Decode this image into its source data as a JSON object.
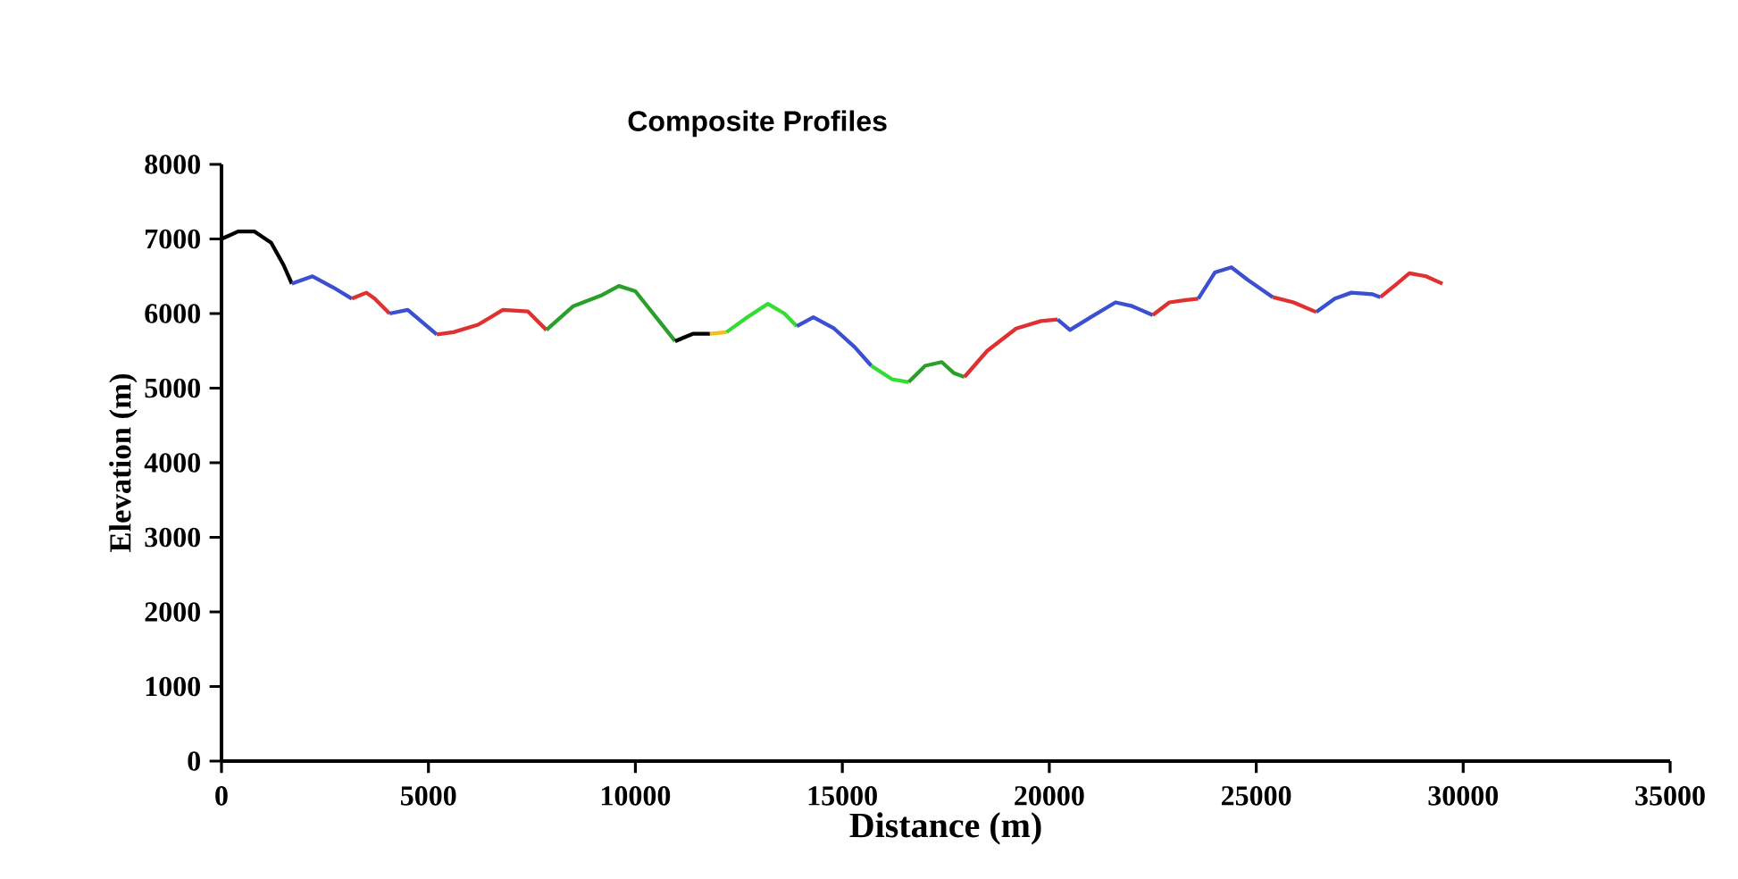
{
  "chart_data": {
    "type": "line",
    "title": "Composite Profiles",
    "xlabel": "Distance (m)",
    "ylabel": "Elevation (m)",
    "xlim": [
      0,
      35000
    ],
    "xticks": [
      0,
      5000,
      10000,
      15000,
      20000,
      25000,
      30000,
      35000
    ],
    "ylim": [
      0,
      8000
    ],
    "yticks": [
      0,
      1000,
      2000,
      3000,
      4000,
      5000,
      6000,
      7000,
      8000
    ],
    "series": [
      {
        "color": "#000000",
        "x": [
          0,
          400,
          800,
          1200,
          1500,
          1700
        ],
        "values": [
          7000,
          7100,
          7100,
          6950,
          6650,
          6400
        ]
      },
      {
        "color": "#3b4fd0",
        "x": [
          1700,
          2200,
          2700,
          3150
        ],
        "values": [
          6400,
          6500,
          6350,
          6200
        ]
      },
      {
        "color": "#e03030",
        "x": [
          3150,
          3500,
          3700,
          4060
        ],
        "values": [
          6200,
          6280,
          6200,
          6000
        ]
      },
      {
        "color": "#3b4fd0",
        "x": [
          4060,
          4500,
          5200
        ],
        "values": [
          6000,
          6050,
          5720
        ]
      },
      {
        "color": "#e03030",
        "x": [
          5200,
          5600,
          6200,
          6800,
          7400,
          7850
        ],
        "values": [
          5720,
          5750,
          5850,
          6050,
          6030,
          5780
        ]
      },
      {
        "color": "#2aa02a",
        "x": [
          7850,
          8500,
          9200,
          9600,
          10000,
          10500,
          10960
        ],
        "values": [
          5780,
          6100,
          6250,
          6370,
          6300,
          5950,
          5630
        ]
      },
      {
        "color": "#000000",
        "x": [
          10960,
          11400,
          11800
        ],
        "values": [
          5630,
          5730,
          5730
        ]
      },
      {
        "color": "#f0c020",
        "x": [
          11800,
          12200
        ],
        "values": [
          5730,
          5750
        ]
      },
      {
        "color": "#33dd33",
        "x": [
          12200,
          12700,
          13200,
          13600,
          13900
        ],
        "values": [
          5750,
          5950,
          6130,
          6000,
          5830
        ]
      },
      {
        "color": "#3b4fd0",
        "x": [
          13900,
          14300,
          14800,
          15300,
          15700
        ],
        "values": [
          5830,
          5950,
          5800,
          5550,
          5300
        ]
      },
      {
        "color": "#33dd33",
        "x": [
          15700,
          16200,
          16600
        ],
        "values": [
          5300,
          5120,
          5080
        ]
      },
      {
        "color": "#2aa02a",
        "x": [
          16600,
          17000,
          17400,
          17700,
          17950
        ],
        "values": [
          5080,
          5300,
          5350,
          5200,
          5150
        ]
      },
      {
        "color": "#e03030",
        "x": [
          17950,
          18500,
          19200,
          19800,
          20200
        ],
        "values": [
          5150,
          5500,
          5800,
          5900,
          5920
        ]
      },
      {
        "color": "#3b4fd0",
        "x": [
          20200,
          20500,
          21000,
          21600,
          22000,
          22500
        ],
        "values": [
          5920,
          5780,
          5950,
          6150,
          6100,
          5980
        ]
      },
      {
        "color": "#e03030",
        "x": [
          22500,
          22900,
          23300,
          23600
        ],
        "values": [
          5980,
          6150,
          6180,
          6200
        ]
      },
      {
        "color": "#3b4fd0",
        "x": [
          23600,
          24000,
          24400,
          24800,
          25400
        ],
        "values": [
          6200,
          6550,
          6620,
          6450,
          6220
        ]
      },
      {
        "color": "#e03030",
        "x": [
          25400,
          25900,
          26450
        ],
        "values": [
          6220,
          6150,
          6020
        ]
      },
      {
        "color": "#3b4fd0",
        "x": [
          26450,
          26900,
          27300,
          27800,
          28000
        ],
        "values": [
          6020,
          6200,
          6280,
          6260,
          6220
        ]
      },
      {
        "color": "#e03030",
        "x": [
          28000,
          28400,
          28700,
          29100,
          29500
        ],
        "values": [
          6220,
          6400,
          6540,
          6500,
          6400
        ]
      }
    ],
    "line_style": "solid",
    "marker": "none",
    "grid": false
  }
}
